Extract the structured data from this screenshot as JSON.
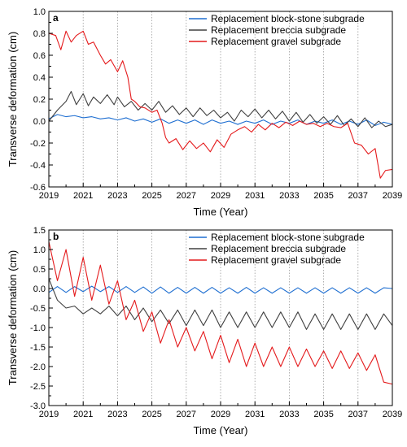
{
  "chart_data": [
    {
      "type": "line",
      "panel_label": "a",
      "xlabel": "Time (Year)",
      "ylabel": "Transverse deformation (cm)",
      "xlim": [
        2019,
        2039
      ],
      "ylim": [
        -0.6,
        1.0
      ],
      "xticks": [
        2019,
        2021,
        2023,
        2025,
        2027,
        2029,
        2031,
        2033,
        2035,
        2037,
        2039
      ],
      "xtick_labels": [
        "2019",
        "2021",
        "2023",
        "2025",
        "2027",
        "2029",
        "2031",
        "2033",
        "2035",
        "2037",
        "2039"
      ],
      "yticks": [
        -0.6,
        -0.4,
        -0.2,
        0.0,
        0.2,
        0.4,
        0.6,
        0.8,
        1.0
      ],
      "ytick_labels": [
        "-0.6",
        "-0.4",
        "-0.2",
        "0.0",
        "0.2",
        "0.4",
        "0.6",
        "0.8",
        "1.0"
      ],
      "grid": "vertical dotted",
      "legend_position": "top-right",
      "series": [
        {
          "name": "Replacement block-stone subgrade",
          "color": "#1f6fd1",
          "x": [
            2019.0,
            2019.5,
            2020.0,
            2020.5,
            2021.0,
            2021.5,
            2022.0,
            2022.5,
            2023.0,
            2023.5,
            2024.0,
            2024.5,
            2025.0,
            2025.5,
            2026.0,
            2026.5,
            2027.0,
            2027.5,
            2028.0,
            2028.5,
            2029.0,
            2029.5,
            2030.0,
            2030.5,
            2031.0,
            2031.5,
            2032.0,
            2032.5,
            2033.0,
            2033.5,
            2034.0,
            2034.5,
            2035.0,
            2035.5,
            2036.0,
            2036.5,
            2037.0,
            2037.5,
            2038.0,
            2038.5,
            2039.0
          ],
          "y": [
            0.02,
            0.06,
            0.04,
            0.05,
            0.03,
            0.04,
            0.02,
            0.03,
            0.01,
            0.03,
            0.0,
            0.02,
            -0.01,
            0.02,
            -0.02,
            0.01,
            -0.02,
            0.01,
            -0.03,
            0.01,
            -0.02,
            0.0,
            -0.03,
            0.0,
            -0.02,
            0.01,
            -0.03,
            0.0,
            -0.02,
            0.01,
            -0.03,
            0.0,
            -0.02,
            0.01,
            -0.03,
            0.0,
            -0.03,
            0.01,
            -0.04,
            -0.01,
            -0.03
          ]
        },
        {
          "name": "Replacement breccia subgrade",
          "color": "#404040",
          "x": [
            2019.0,
            2019.5,
            2020.0,
            2020.3,
            2020.6,
            2021.0,
            2021.3,
            2021.6,
            2022.0,
            2022.4,
            2022.8,
            2023.0,
            2023.4,
            2023.8,
            2024.2,
            2024.6,
            2025.0,
            2025.4,
            2025.8,
            2026.2,
            2026.6,
            2027.0,
            2027.4,
            2027.8,
            2028.2,
            2028.6,
            2029.0,
            2029.4,
            2029.8,
            2030.2,
            2030.6,
            2031.0,
            2031.4,
            2031.8,
            2032.2,
            2032.6,
            2033.0,
            2033.4,
            2033.8,
            2034.2,
            2034.6,
            2035.0,
            2035.4,
            2035.8,
            2036.2,
            2036.6,
            2037.0,
            2037.4,
            2037.8,
            2038.2,
            2038.6,
            2039.0
          ],
          "y": [
            0.0,
            0.1,
            0.18,
            0.27,
            0.15,
            0.25,
            0.14,
            0.22,
            0.16,
            0.24,
            0.15,
            0.22,
            0.13,
            0.18,
            0.1,
            0.16,
            0.1,
            0.18,
            0.08,
            0.14,
            0.06,
            0.12,
            0.04,
            0.12,
            0.05,
            0.1,
            0.03,
            0.08,
            0.0,
            0.1,
            0.04,
            0.11,
            0.03,
            0.1,
            0.02,
            0.09,
            0.0,
            0.08,
            -0.01,
            0.06,
            -0.02,
            0.04,
            -0.03,
            0.05,
            -0.04,
            0.02,
            -0.05,
            0.03,
            -0.06,
            0.0,
            -0.05,
            -0.03
          ]
        },
        {
          "name": "Replacement gravel subgrade",
          "color": "#e41a1c",
          "x": [
            2019.0,
            2019.4,
            2019.7,
            2020.0,
            2020.3,
            2020.6,
            2021.0,
            2021.3,
            2021.6,
            2022.0,
            2022.3,
            2022.6,
            2023.0,
            2023.3,
            2023.6,
            2023.8,
            2024.0,
            2024.3,
            2024.6,
            2025.0,
            2025.3,
            2025.6,
            2025.8,
            2026.0,
            2026.4,
            2026.8,
            2027.2,
            2027.6,
            2028.0,
            2028.4,
            2028.8,
            2029.2,
            2029.6,
            2030.0,
            2030.4,
            2030.8,
            2031.2,
            2031.6,
            2032.0,
            2032.4,
            2032.8,
            2033.2,
            2033.6,
            2034.0,
            2034.4,
            2034.8,
            2035.2,
            2035.6,
            2036.0,
            2036.4,
            2036.8,
            2037.2,
            2037.6,
            2038.0,
            2038.3,
            2038.6,
            2039.0
          ],
          "y": [
            0.8,
            0.78,
            0.65,
            0.82,
            0.72,
            0.78,
            0.82,
            0.7,
            0.72,
            0.6,
            0.52,
            0.56,
            0.45,
            0.55,
            0.4,
            0.2,
            0.18,
            0.13,
            0.12,
            0.08,
            0.1,
            -0.02,
            -0.15,
            -0.2,
            -0.16,
            -0.26,
            -0.18,
            -0.25,
            -0.2,
            -0.28,
            -0.17,
            -0.24,
            -0.12,
            -0.08,
            -0.05,
            -0.1,
            -0.03,
            -0.08,
            -0.02,
            -0.06,
            -0.01,
            -0.04,
            0.0,
            -0.03,
            -0.02,
            -0.05,
            -0.02,
            -0.05,
            -0.06,
            -0.02,
            -0.2,
            -0.22,
            -0.3,
            -0.25,
            -0.52,
            -0.45,
            -0.44
          ]
        }
      ]
    },
    {
      "type": "line",
      "panel_label": "b",
      "xlabel": "Time (Year)",
      "ylabel": "Transverse deformation (cm)",
      "xlim": [
        2019,
        2039
      ],
      "ylim": [
        -3.0,
        1.5
      ],
      "xticks": [
        2019,
        2021,
        2023,
        2025,
        2027,
        2029,
        2031,
        2033,
        2035,
        2037,
        2039
      ],
      "xtick_labels": [
        "2019",
        "2021",
        "2023",
        "2025",
        "2027",
        "2029",
        "2031",
        "2033",
        "2035",
        "2037",
        "2039"
      ],
      "yticks": [
        -3.0,
        -2.5,
        -2.0,
        -1.5,
        -1.0,
        -0.5,
        0.0,
        0.5,
        1.0,
        1.5
      ],
      "ytick_labels": [
        "-3.0",
        "-2.5",
        "-2.0",
        "-1.5",
        "-1.0",
        "-0.5",
        "0.0",
        "0.5",
        "1.0",
        "1.5"
      ],
      "grid": "vertical dotted",
      "legend_position": "top-right",
      "series": [
        {
          "name": "Replacement block-stone subgrade",
          "color": "#1f6fd1",
          "x": [
            2019.0,
            2019.5,
            2020.0,
            2020.5,
            2021.0,
            2021.5,
            2022.0,
            2022.5,
            2023.0,
            2023.5,
            2024.0,
            2024.5,
            2025.0,
            2025.5,
            2026.0,
            2026.5,
            2027.0,
            2027.5,
            2028.0,
            2028.5,
            2029.0,
            2029.5,
            2030.0,
            2030.5,
            2031.0,
            2031.5,
            2032.0,
            2032.5,
            2033.0,
            2033.5,
            2034.0,
            2034.5,
            2035.0,
            2035.5,
            2036.0,
            2036.5,
            2037.0,
            2037.5,
            2038.0,
            2038.5,
            2039.0
          ],
          "y": [
            -0.1,
            0.05,
            -0.1,
            0.05,
            -0.08,
            0.06,
            -0.08,
            0.05,
            -0.1,
            0.05,
            -0.1,
            0.04,
            -0.12,
            0.04,
            -0.12,
            0.03,
            -0.12,
            0.03,
            -0.12,
            0.03,
            -0.12,
            0.02,
            -0.12,
            0.03,
            -0.12,
            0.02,
            -0.12,
            0.02,
            -0.12,
            0.02,
            -0.12,
            0.02,
            -0.12,
            0.02,
            -0.12,
            0.02,
            -0.12,
            0.02,
            -0.12,
            0.02,
            0.0
          ]
        },
        {
          "name": "Replacement breccia subgrade",
          "color": "#404040",
          "x": [
            2019.0,
            2019.5,
            2020.0,
            2020.5,
            2021.0,
            2021.5,
            2022.0,
            2022.5,
            2023.0,
            2023.5,
            2024.0,
            2024.5,
            2025.0,
            2025.5,
            2026.0,
            2026.5,
            2027.0,
            2027.5,
            2028.0,
            2028.5,
            2029.0,
            2029.5,
            2030.0,
            2030.5,
            2031.0,
            2031.5,
            2032.0,
            2032.5,
            2033.0,
            2033.5,
            2034.0,
            2034.5,
            2035.0,
            2035.5,
            2036.0,
            2036.5,
            2037.0,
            2037.5,
            2038.0,
            2038.5,
            2039.0
          ],
          "y": [
            0.25,
            -0.3,
            -0.5,
            -0.45,
            -0.65,
            -0.5,
            -0.65,
            -0.45,
            -0.7,
            -0.45,
            -0.8,
            -0.5,
            -0.85,
            -0.55,
            -0.9,
            -0.55,
            -0.95,
            -0.55,
            -0.95,
            -0.55,
            -1.0,
            -0.6,
            -1.0,
            -0.6,
            -1.0,
            -0.6,
            -1.0,
            -0.6,
            -1.0,
            -0.6,
            -1.05,
            -0.65,
            -1.05,
            -0.65,
            -1.05,
            -0.65,
            -1.05,
            -0.65,
            -1.05,
            -0.65,
            -0.95
          ]
        },
        {
          "name": "Replacement gravel subgrade",
          "color": "#e41a1c",
          "x": [
            2019.0,
            2019.5,
            2020.0,
            2020.5,
            2021.0,
            2021.5,
            2022.0,
            2022.5,
            2023.0,
            2023.5,
            2024.0,
            2024.5,
            2025.0,
            2025.5,
            2026.0,
            2026.5,
            2027.0,
            2027.5,
            2028.0,
            2028.5,
            2029.0,
            2029.5,
            2030.0,
            2030.5,
            2031.0,
            2031.5,
            2032.0,
            2032.5,
            2033.0,
            2033.5,
            2034.0,
            2034.5,
            2035.0,
            2035.5,
            2036.0,
            2036.5,
            2037.0,
            2037.5,
            2038.0,
            2038.5,
            2039.0
          ],
          "y": [
            1.2,
            0.2,
            1.0,
            -0.2,
            0.8,
            -0.3,
            0.6,
            -0.4,
            0.2,
            -0.8,
            -0.3,
            -1.1,
            -0.6,
            -1.4,
            -0.8,
            -1.5,
            -1.0,
            -1.6,
            -1.1,
            -1.8,
            -1.2,
            -1.9,
            -1.3,
            -2.0,
            -1.4,
            -2.0,
            -1.5,
            -2.0,
            -1.5,
            -2.0,
            -1.55,
            -2.0,
            -1.6,
            -2.05,
            -1.6,
            -2.05,
            -1.65,
            -2.1,
            -1.7,
            -2.4,
            -2.45
          ]
        }
      ]
    }
  ]
}
